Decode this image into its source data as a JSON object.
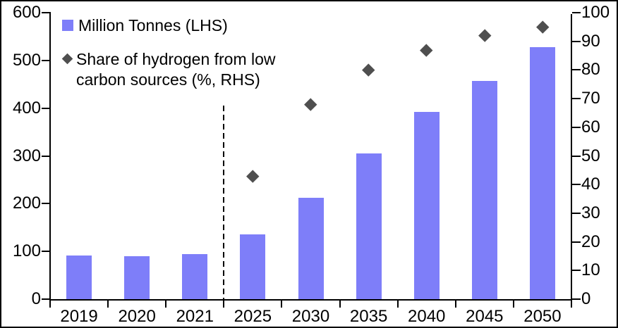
{
  "chart_data": {
    "type": "combo",
    "title": "",
    "categories": [
      "2019",
      "2020",
      "2021",
      "2025",
      "2030",
      "2035",
      "2040",
      "2045",
      "2050"
    ],
    "series": [
      {
        "name": "Million Tonnes (LHS)",
        "type": "bar",
        "axis": "left",
        "color": "#7E7EF9",
        "values": [
          91,
          90,
          95,
          135,
          212,
          305,
          392,
          457,
          528
        ]
      },
      {
        "name": "Share of hydrogen from low carbon sources (%, RHS)",
        "type": "scatter",
        "marker": "diamond",
        "axis": "right",
        "color": "#4F4F4F",
        "values": [
          null,
          null,
          null,
          43,
          68,
          80,
          87,
          92,
          95
        ]
      }
    ],
    "left_axis": {
      "min": 0,
      "max": 600,
      "step": 100,
      "tick_labels": [
        "0",
        "100",
        "200",
        "300",
        "400",
        "500",
        "600"
      ]
    },
    "right_axis": {
      "min": 0,
      "max": 100,
      "step": 10,
      "tick_labels": [
        "0",
        "10",
        "20",
        "30",
        "40",
        "50",
        "60",
        "70",
        "80",
        "90",
        "100"
      ]
    },
    "divider": {
      "style": "dashed",
      "between": [
        "2021",
        "2025"
      ],
      "top_value_lhs": 405
    },
    "legend_position": "top-left",
    "grid": false,
    "axis_color": "#000000",
    "background_color": "#ffffff"
  }
}
